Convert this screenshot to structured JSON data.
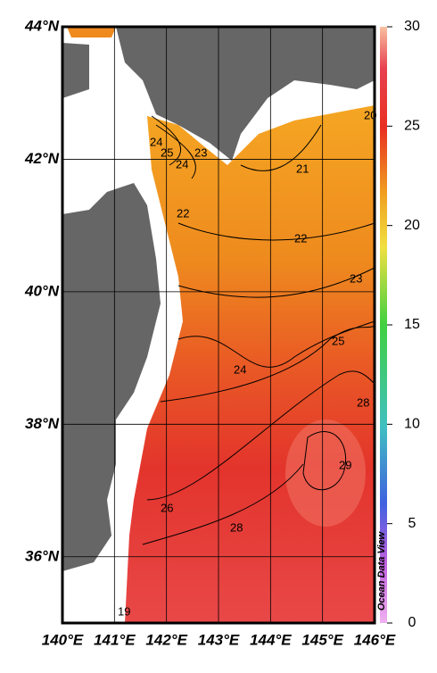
{
  "map": {
    "lon_ticks": [
      {
        "value": 140,
        "label": "140°E"
      },
      {
        "value": 141,
        "label": "141°E"
      },
      {
        "value": 142,
        "label": "142°E"
      },
      {
        "value": 143,
        "label": "143°E"
      },
      {
        "value": 144,
        "label": "144°E"
      },
      {
        "value": 145,
        "label": "145°E"
      },
      {
        "value": 146,
        "label": "146°E"
      }
    ],
    "lat_ticks": [
      {
        "value": 36,
        "label": "36°N"
      },
      {
        "value": 38,
        "label": "38°N"
      },
      {
        "value": 40,
        "label": "40°N"
      },
      {
        "value": 42,
        "label": "42°N"
      },
      {
        "value": 44,
        "label": "44°N"
      }
    ],
    "lonlim": [
      140,
      146
    ],
    "latlim": [
      35,
      44
    ],
    "colorbar": {
      "clim": [
        0,
        30
      ],
      "ticks": [
        0,
        5,
        10,
        15,
        20,
        25,
        30
      ]
    },
    "contour_labels": [
      "21",
      "22",
      "23",
      "24",
      "25",
      "28",
      "29",
      "26",
      "28",
      "19",
      "24",
      "22",
      "23",
      "24",
      "25",
      "20"
    ],
    "watermark": "Ocean Data View"
  }
}
